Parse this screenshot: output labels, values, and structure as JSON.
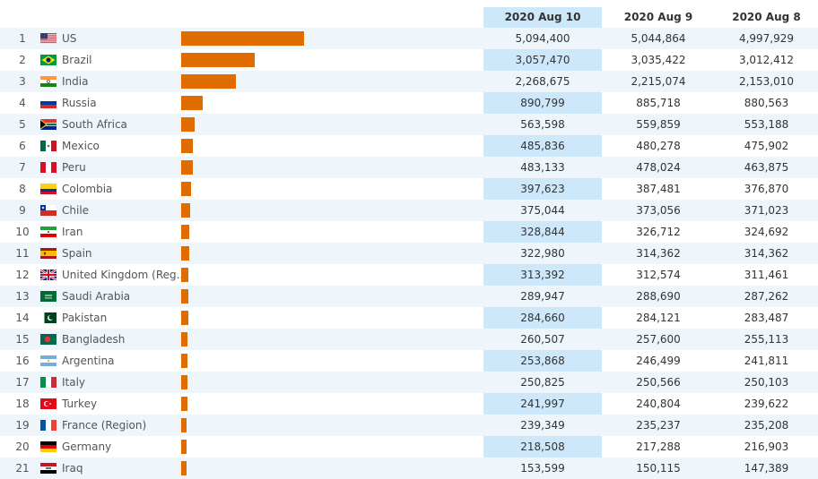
{
  "header": {
    "columns": [
      "2020 Aug 10",
      "2020 Aug 9",
      "2020 Aug 8"
    ]
  },
  "bar_color": "#e06c00",
  "highlight_color": "#cde8fa",
  "rows": [
    {
      "rank": "1",
      "country": "US",
      "flag_icon": "us-flag-icon",
      "values": [
        "5,094,400",
        "5,044,864",
        "4,997,929"
      ]
    },
    {
      "rank": "2",
      "country": "Brazil",
      "flag_icon": "brazil-flag-icon",
      "values": [
        "3,057,470",
        "3,035,422",
        "3,012,412"
      ]
    },
    {
      "rank": "3",
      "country": "India",
      "flag_icon": "india-flag-icon",
      "values": [
        "2,268,675",
        "2,215,074",
        "2,153,010"
      ]
    },
    {
      "rank": "4",
      "country": "Russia",
      "flag_icon": "russia-flag-icon",
      "values": [
        "890,799",
        "885,718",
        "880,563"
      ]
    },
    {
      "rank": "5",
      "country": "South Africa",
      "flag_icon": "south-africa-flag-icon",
      "values": [
        "563,598",
        "559,859",
        "553,188"
      ]
    },
    {
      "rank": "6",
      "country": "Mexico",
      "flag_icon": "mexico-flag-icon",
      "values": [
        "485,836",
        "480,278",
        "475,902"
      ]
    },
    {
      "rank": "7",
      "country": "Peru",
      "flag_icon": "peru-flag-icon",
      "values": [
        "483,133",
        "478,024",
        "463,875"
      ]
    },
    {
      "rank": "8",
      "country": "Colombia",
      "flag_icon": "colombia-flag-icon",
      "values": [
        "397,623",
        "387,481",
        "376,870"
      ]
    },
    {
      "rank": "9",
      "country": "Chile",
      "flag_icon": "chile-flag-icon",
      "values": [
        "375,044",
        "373,056",
        "371,023"
      ]
    },
    {
      "rank": "10",
      "country": "Iran",
      "flag_icon": "iran-flag-icon",
      "values": [
        "328,844",
        "326,712",
        "324,692"
      ]
    },
    {
      "rank": "11",
      "country": "Spain",
      "flag_icon": "spain-flag-icon",
      "values": [
        "322,980",
        "314,362",
        "314,362"
      ]
    },
    {
      "rank": "12",
      "country": "United Kingdom (Reg...",
      "flag_icon": "uk-flag-icon",
      "values": [
        "313,392",
        "312,574",
        "311,461"
      ]
    },
    {
      "rank": "13",
      "country": "Saudi Arabia",
      "flag_icon": "saudi-arabia-flag-icon",
      "values": [
        "289,947",
        "288,690",
        "287,262"
      ]
    },
    {
      "rank": "14",
      "country": "Pakistan",
      "flag_icon": "pakistan-flag-icon",
      "values": [
        "284,660",
        "284,121",
        "283,487"
      ]
    },
    {
      "rank": "15",
      "country": "Bangladesh",
      "flag_icon": "bangladesh-flag-icon",
      "values": [
        "260,507",
        "257,600",
        "255,113"
      ]
    },
    {
      "rank": "16",
      "country": "Argentina",
      "flag_icon": "argentina-flag-icon",
      "values": [
        "253,868",
        "246,499",
        "241,811"
      ]
    },
    {
      "rank": "17",
      "country": "Italy",
      "flag_icon": "italy-flag-icon",
      "values": [
        "250,825",
        "250,566",
        "250,103"
      ]
    },
    {
      "rank": "18",
      "country": "Turkey",
      "flag_icon": "turkey-flag-icon",
      "values": [
        "241,997",
        "240,804",
        "239,622"
      ]
    },
    {
      "rank": "19",
      "country": "France (Region)",
      "flag_icon": "france-flag-icon",
      "values": [
        "239,349",
        "235,237",
        "235,208"
      ]
    },
    {
      "rank": "20",
      "country": "Germany",
      "flag_icon": "germany-flag-icon",
      "values": [
        "218,508",
        "217,288",
        "216,903"
      ]
    },
    {
      "rank": "21",
      "country": "Iraq",
      "flag_icon": "iraq-flag-icon",
      "values": [
        "153,599",
        "150,115",
        "147,389"
      ]
    }
  ]
}
